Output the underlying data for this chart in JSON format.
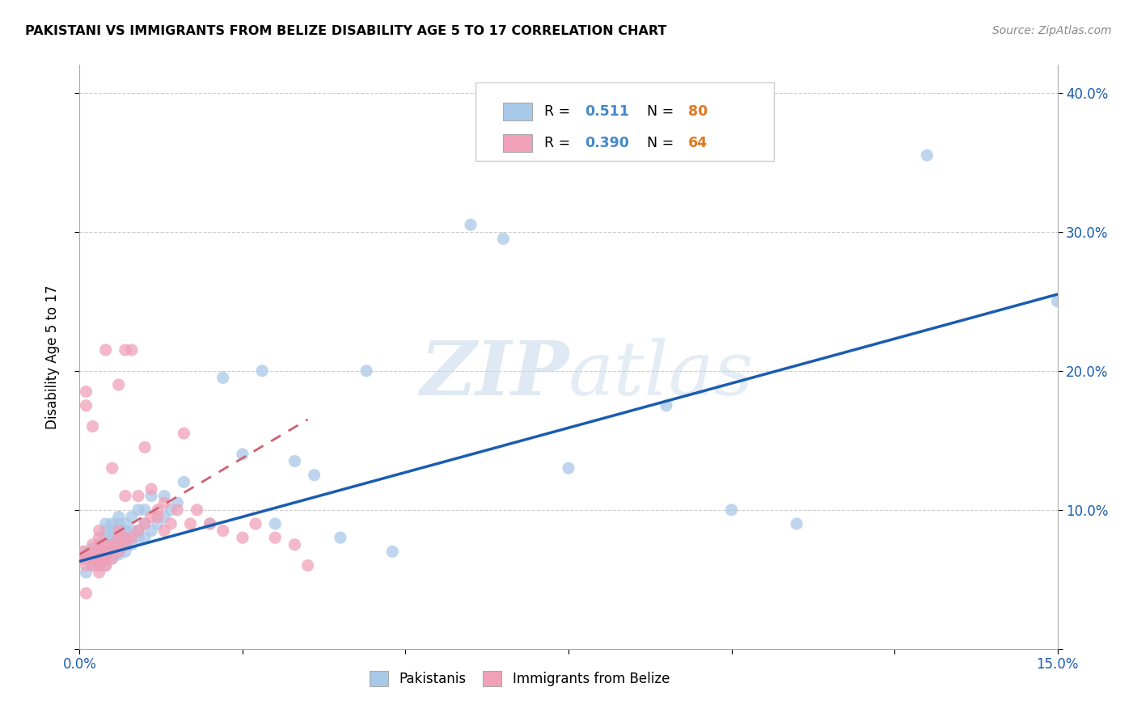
{
  "title": "PAKISTANI VS IMMIGRANTS FROM BELIZE DISABILITY AGE 5 TO 17 CORRELATION CHART",
  "source": "Source: ZipAtlas.com",
  "ylabel": "Disability Age 5 to 17",
  "xlim": [
    0.0,
    0.15
  ],
  "ylim": [
    0.0,
    0.42
  ],
  "blue_R": 0.511,
  "blue_N": 80,
  "pink_R": 0.39,
  "pink_N": 64,
  "blue_color": "#a8c8e8",
  "pink_color": "#f0a0b8",
  "blue_line_color": "#1a5cb0",
  "pink_line_color": "#d06070",
  "R_color": "#4488cc",
  "N_color": "#e07820",
  "watermark": "ZIPatlas",
  "legend_labels": [
    "Pakistanis",
    "Immigrants from Belize"
  ],
  "blue_scatter_x": [
    0.0005,
    0.001,
    0.001,
    0.0015,
    0.002,
    0.002,
    0.002,
    0.0025,
    0.003,
    0.003,
    0.003,
    0.003,
    0.003,
    0.003,
    0.0035,
    0.004,
    0.004,
    0.004,
    0.004,
    0.004,
    0.004,
    0.004,
    0.004,
    0.005,
    0.005,
    0.005,
    0.005,
    0.005,
    0.005,
    0.005,
    0.006,
    0.006,
    0.006,
    0.006,
    0.006,
    0.006,
    0.006,
    0.007,
    0.007,
    0.007,
    0.007,
    0.007,
    0.008,
    0.008,
    0.008,
    0.008,
    0.009,
    0.009,
    0.009,
    0.01,
    0.01,
    0.01,
    0.011,
    0.011,
    0.012,
    0.013,
    0.013,
    0.014,
    0.015,
    0.016,
    0.02,
    0.022,
    0.025,
    0.028,
    0.03,
    0.033,
    0.036,
    0.04,
    0.044,
    0.048,
    0.06,
    0.065,
    0.075,
    0.09,
    0.1,
    0.11,
    0.13,
    0.15,
    0.001,
    0.002
  ],
  "blue_scatter_y": [
    0.065,
    0.065,
    0.07,
    0.065,
    0.065,
    0.068,
    0.072,
    0.065,
    0.06,
    0.065,
    0.068,
    0.07,
    0.072,
    0.075,
    0.065,
    0.06,
    0.065,
    0.068,
    0.07,
    0.075,
    0.08,
    0.085,
    0.09,
    0.065,
    0.068,
    0.07,
    0.075,
    0.08,
    0.085,
    0.09,
    0.068,
    0.07,
    0.075,
    0.08,
    0.085,
    0.09,
    0.095,
    0.07,
    0.075,
    0.08,
    0.085,
    0.09,
    0.075,
    0.08,
    0.085,
    0.095,
    0.08,
    0.085,
    0.1,
    0.08,
    0.09,
    0.1,
    0.085,
    0.11,
    0.09,
    0.095,
    0.11,
    0.1,
    0.105,
    0.12,
    0.09,
    0.195,
    0.14,
    0.2,
    0.09,
    0.135,
    0.125,
    0.08,
    0.2,
    0.07,
    0.305,
    0.295,
    0.13,
    0.175,
    0.1,
    0.09,
    0.355,
    0.25,
    0.055,
    0.06
  ],
  "pink_scatter_x": [
    0.0003,
    0.0005,
    0.001,
    0.001,
    0.001,
    0.001,
    0.0015,
    0.002,
    0.002,
    0.002,
    0.002,
    0.002,
    0.0025,
    0.003,
    0.003,
    0.003,
    0.003,
    0.003,
    0.003,
    0.003,
    0.0035,
    0.004,
    0.004,
    0.004,
    0.004,
    0.004,
    0.005,
    0.005,
    0.005,
    0.005,
    0.006,
    0.006,
    0.006,
    0.006,
    0.006,
    0.007,
    0.007,
    0.007,
    0.007,
    0.008,
    0.008,
    0.009,
    0.009,
    0.01,
    0.01,
    0.011,
    0.011,
    0.012,
    0.012,
    0.013,
    0.013,
    0.014,
    0.015,
    0.016,
    0.017,
    0.018,
    0.02,
    0.022,
    0.025,
    0.027,
    0.03,
    0.033,
    0.035,
    0.001
  ],
  "pink_scatter_y": [
    0.065,
    0.07,
    0.06,
    0.065,
    0.175,
    0.185,
    0.065,
    0.06,
    0.065,
    0.07,
    0.075,
    0.16,
    0.065,
    0.055,
    0.06,
    0.065,
    0.07,
    0.075,
    0.08,
    0.085,
    0.065,
    0.06,
    0.065,
    0.07,
    0.075,
    0.215,
    0.065,
    0.07,
    0.075,
    0.13,
    0.07,
    0.075,
    0.08,
    0.085,
    0.19,
    0.075,
    0.08,
    0.11,
    0.215,
    0.08,
    0.215,
    0.085,
    0.11,
    0.09,
    0.145,
    0.095,
    0.115,
    0.095,
    0.1,
    0.085,
    0.105,
    0.09,
    0.1,
    0.155,
    0.09,
    0.1,
    0.09,
    0.085,
    0.08,
    0.09,
    0.08,
    0.075,
    0.06,
    0.04
  ],
  "blue_trend_x": [
    0.0,
    0.15
  ],
  "blue_trend_y": [
    0.063,
    0.255
  ],
  "pink_trend_x": [
    0.0,
    0.035
  ],
  "pink_trend_y": [
    0.068,
    0.165
  ]
}
